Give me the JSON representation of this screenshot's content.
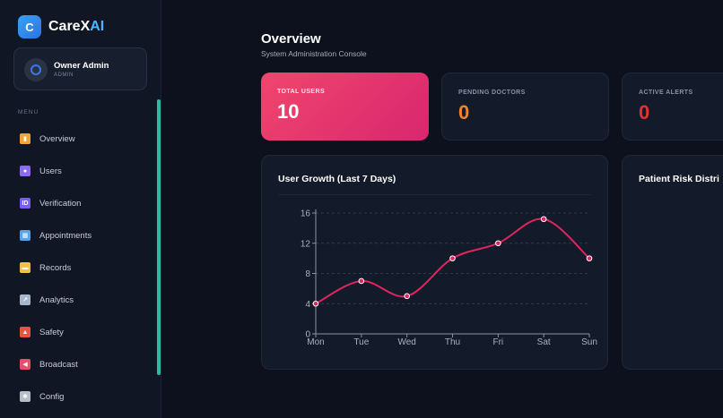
{
  "brand": {
    "logo_letter": "C",
    "name_part1": "CareX",
    "name_part2": "AI"
  },
  "profile": {
    "name": "Owner Admin",
    "role": "ADMIN"
  },
  "menu": {
    "label": "MENU",
    "items": [
      {
        "label": "Overview",
        "icon": "bar-chart-icon",
        "color": "#f2a33a"
      },
      {
        "label": "Users",
        "icon": "users-icon",
        "color": "#8b6cf0"
      },
      {
        "label": "Verification",
        "icon": "id-card-icon",
        "color": "#7b5cf5"
      },
      {
        "label": "Appointments",
        "icon": "calendar-icon",
        "color": "#5aa3e8"
      },
      {
        "label": "Records",
        "icon": "folder-icon",
        "color": "#f5c04a"
      },
      {
        "label": "Analytics",
        "icon": "chart-line-icon",
        "color": "#a8b6cc"
      },
      {
        "label": "Safety",
        "icon": "siren-icon",
        "color": "#e8553c"
      },
      {
        "label": "Broadcast",
        "icon": "megaphone-icon",
        "color": "#e84d6c"
      },
      {
        "label": "Config",
        "icon": "gear-icon",
        "color": "#b6bcc8"
      }
    ]
  },
  "header": {
    "title": "Overview",
    "subtitle": "System Administration Console"
  },
  "stats": [
    {
      "label": "TOTAL USERS",
      "value": "10",
      "color": "#ffffff"
    },
    {
      "label": "PENDING DOCTORS",
      "value": "0",
      "color": "#f7821f"
    },
    {
      "label": "ACTIVE ALERTS",
      "value": "0",
      "color": "#e0352b"
    }
  ],
  "growth_card": {
    "title": "User Growth (Last 7 Days)"
  },
  "risk_card": {
    "title": "Patient Risk Distri"
  },
  "chart_data": {
    "type": "line",
    "title": "User Growth (Last 7 Days)",
    "categories": [
      "Mon",
      "Tue",
      "Wed",
      "Thu",
      "Fri",
      "Sat",
      "Sun"
    ],
    "values": [
      4,
      7,
      5,
      10,
      12,
      15.2,
      10
    ],
    "ylim": [
      0,
      16
    ],
    "yticks": [
      0,
      4,
      8,
      12,
      16
    ],
    "grid": true,
    "line_color": "#e0245e"
  }
}
